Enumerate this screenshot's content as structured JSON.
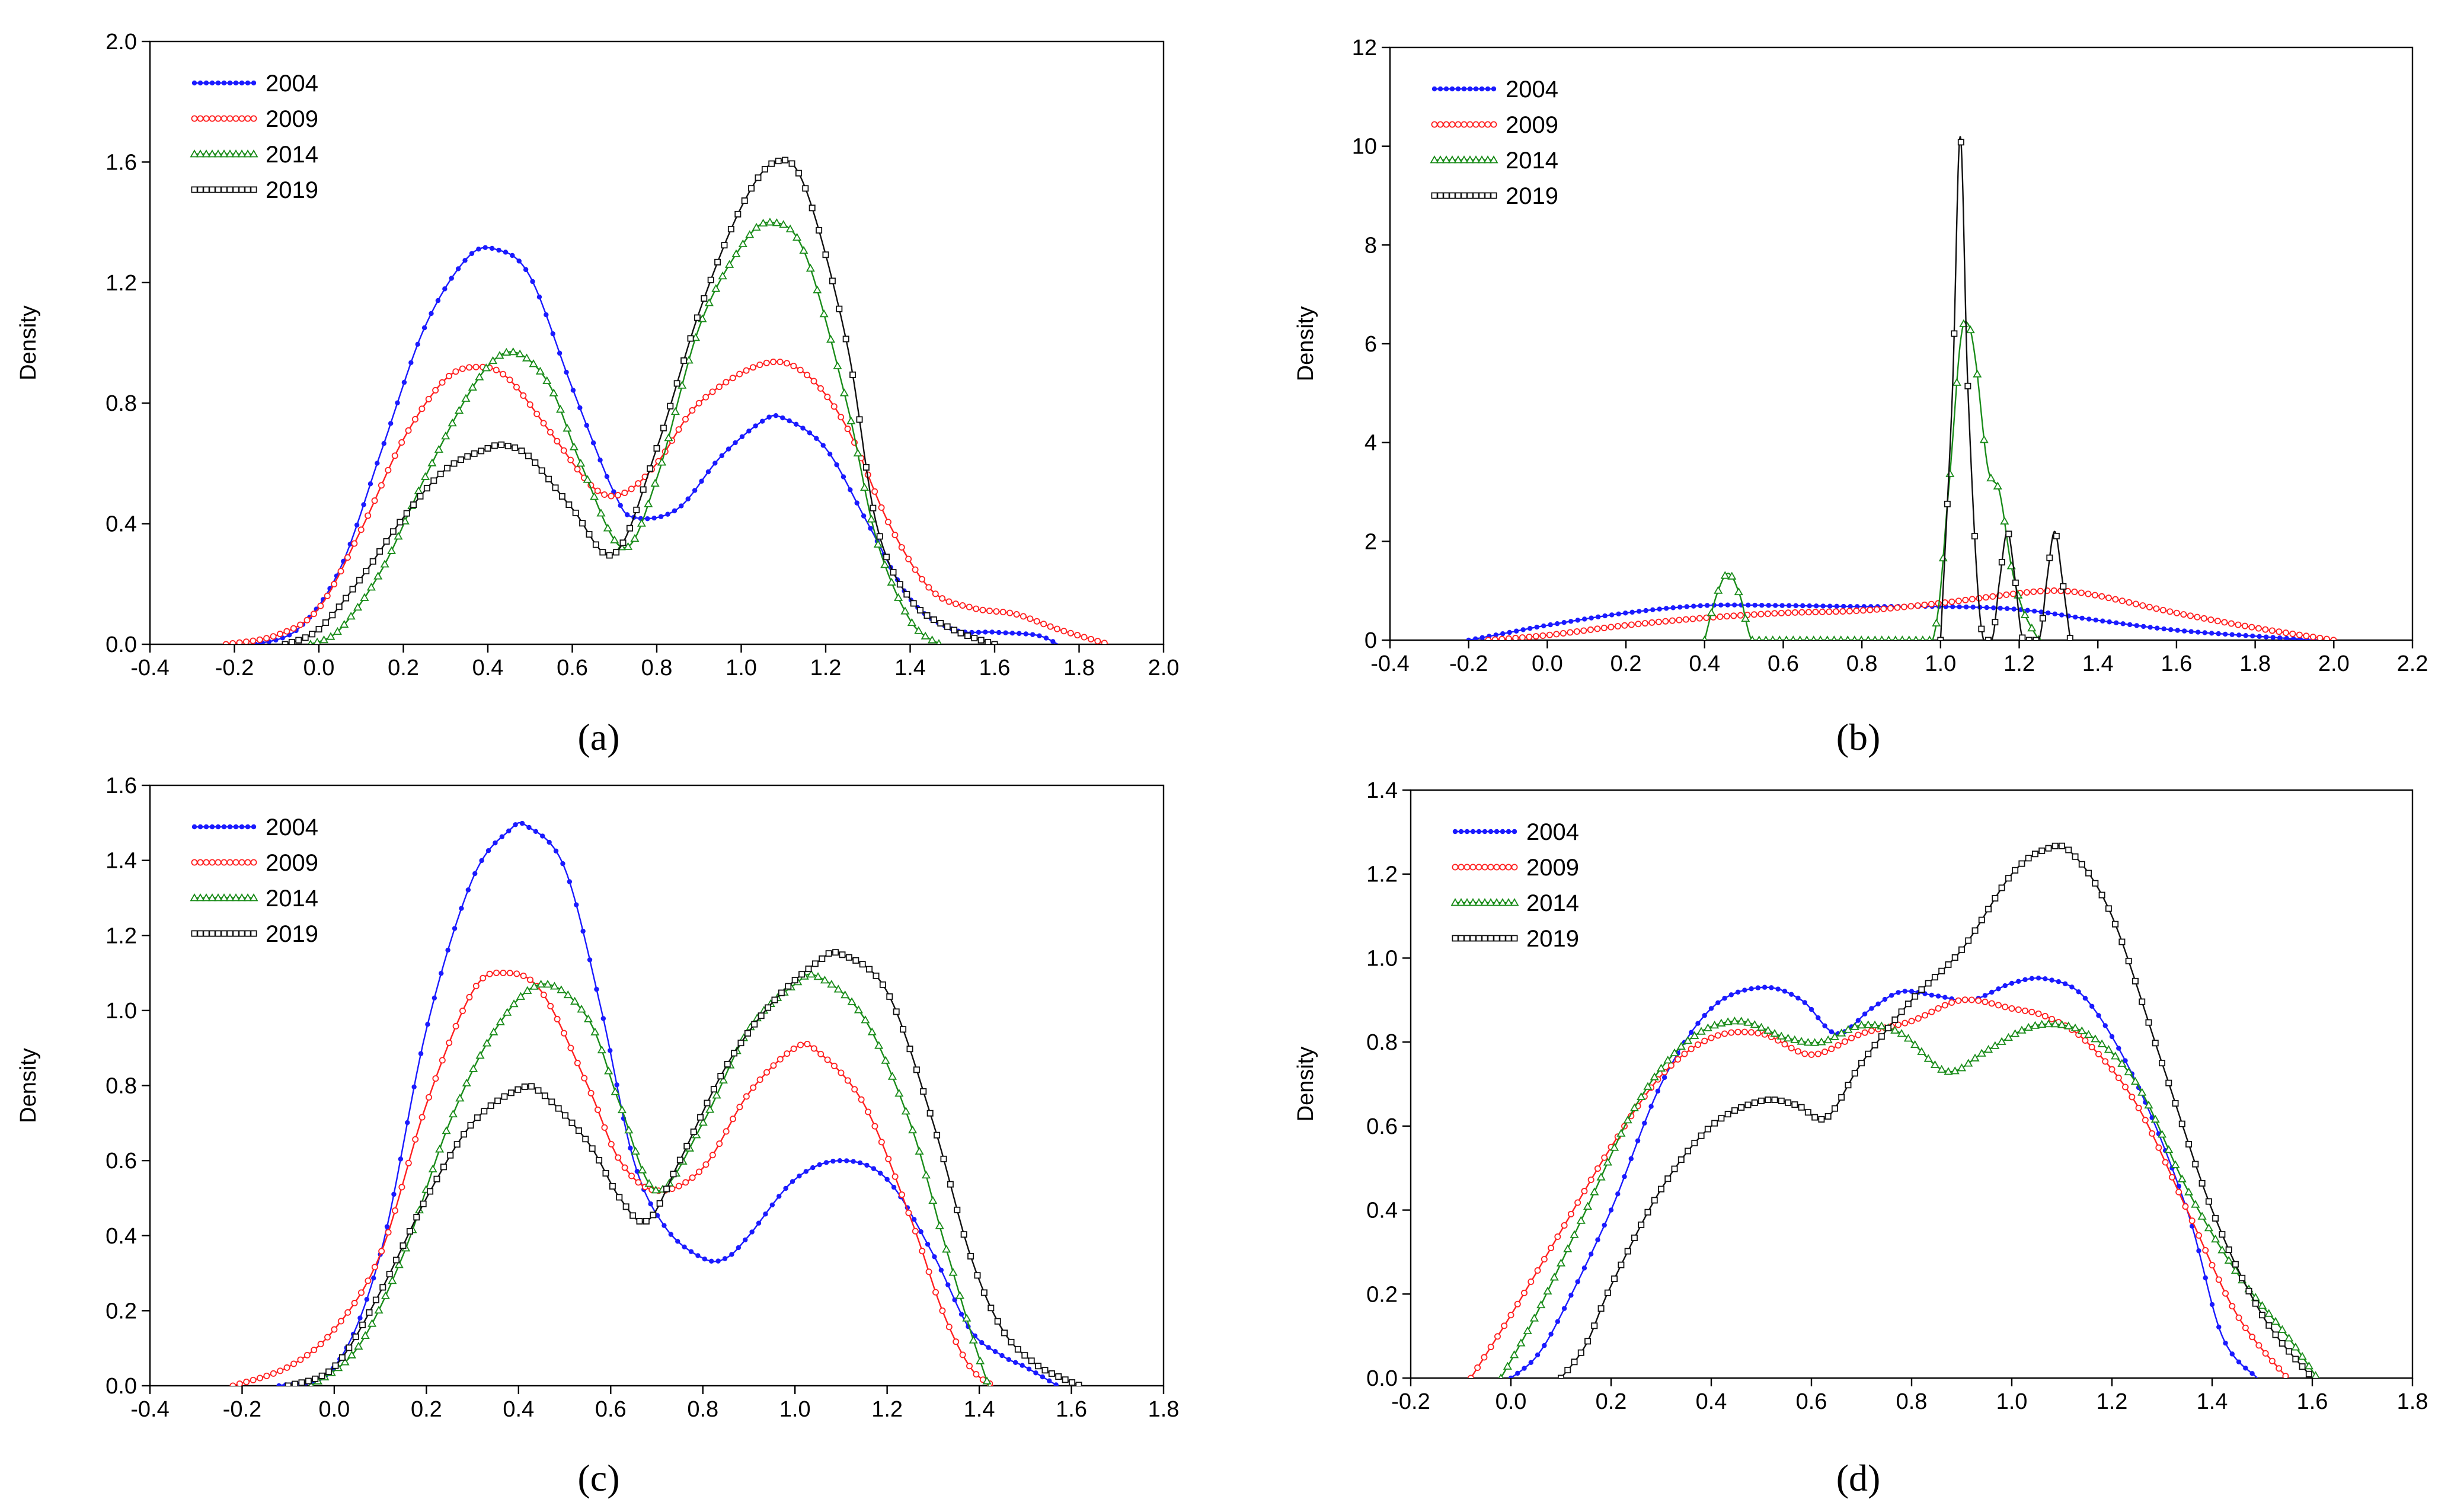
{
  "chart_data": [
    {
      "type": "line",
      "panel_label": "(a)",
      "ylabel": "Density",
      "xlim": [
        -0.4,
        2.0
      ],
      "ylim": [
        0.0,
        2.0
      ],
      "xticks": [
        -0.4,
        -0.2,
        0.0,
        0.2,
        0.4,
        0.6,
        0.8,
        1.0,
        1.2,
        1.4,
        1.6,
        1.8,
        2.0
      ],
      "xtick_labels": [
        "-0.4",
        "-0.2",
        "0.0",
        "0.2",
        "0.4",
        "0.6",
        "0.8",
        "1.0",
        "1.2",
        "1.4",
        "1.6",
        "1.8",
        "2.0"
      ],
      "yticks": [
        0.0,
        0.4,
        0.8,
        1.2,
        1.6,
        2.0
      ],
      "ytick_labels": [
        "0.0",
        "0.4",
        "0.8",
        "1.2",
        "1.6",
        "2.0"
      ],
      "legend": "top-left",
      "series": [
        {
          "name": "2004",
          "marker": "filled-dot",
          "color": "#1a1aff",
          "x": [
            -0.15,
            -0.05,
            0.05,
            0.15,
            0.25,
            0.35,
            0.42,
            0.5,
            0.6,
            0.7,
            0.75,
            0.85,
            0.95,
            1.05,
            1.1,
            1.2,
            1.3,
            1.4,
            1.5,
            1.6,
            1.7,
            1.75
          ],
          "y": [
            0.0,
            0.05,
            0.25,
            0.65,
            1.05,
            1.28,
            1.31,
            1.22,
            0.85,
            0.5,
            0.42,
            0.45,
            0.62,
            0.74,
            0.75,
            0.65,
            0.4,
            0.15,
            0.05,
            0.04,
            0.03,
            0.0
          ]
        },
        {
          "name": "2009",
          "marker": "open-circle",
          "color": "#ff2020",
          "x": [
            -0.22,
            -0.1,
            0.0,
            0.1,
            0.2,
            0.3,
            0.38,
            0.45,
            0.55,
            0.65,
            0.72,
            0.8,
            0.9,
            1.05,
            1.15,
            1.25,
            1.35,
            1.45,
            1.55,
            1.65,
            1.75,
            1.87
          ],
          "y": [
            0.0,
            0.03,
            0.12,
            0.38,
            0.68,
            0.88,
            0.92,
            0.88,
            0.7,
            0.52,
            0.5,
            0.6,
            0.8,
            0.93,
            0.9,
            0.72,
            0.4,
            0.18,
            0.12,
            0.1,
            0.05,
            0.0
          ]
        },
        {
          "name": "2014",
          "marker": "open-triangle",
          "color": "#1a8c1a",
          "x": [
            -0.02,
            0.05,
            0.15,
            0.25,
            0.35,
            0.42,
            0.48,
            0.55,
            0.62,
            0.72,
            0.8,
            0.9,
            1.0,
            1.07,
            1.15,
            1.25,
            1.32,
            1.4,
            1.47
          ],
          "y": [
            0.0,
            0.05,
            0.25,
            0.55,
            0.82,
            0.95,
            0.96,
            0.85,
            0.6,
            0.32,
            0.55,
            1.05,
            1.32,
            1.4,
            1.3,
            0.8,
            0.35,
            0.08,
            0.0
          ]
        },
        {
          "name": "2019",
          "marker": "open-square",
          "color": "#111111",
          "x": [
            -0.08,
            0.0,
            0.1,
            0.2,
            0.3,
            0.4,
            0.44,
            0.5,
            0.6,
            0.7,
            0.8,
            0.9,
            1.0,
            1.08,
            1.15,
            1.25,
            1.32,
            1.4,
            1.5,
            1.6
          ],
          "y": [
            0.0,
            0.05,
            0.22,
            0.42,
            0.58,
            0.65,
            0.66,
            0.62,
            0.45,
            0.3,
            0.65,
            1.1,
            1.45,
            1.6,
            1.52,
            1.0,
            0.4,
            0.15,
            0.05,
            0.0
          ]
        }
      ]
    },
    {
      "type": "line",
      "panel_label": "(b)",
      "ylabel": "Density",
      "xlim": [
        -0.4,
        2.2
      ],
      "ylim": [
        0,
        12
      ],
      "xticks": [
        -0.4,
        -0.2,
        0.0,
        0.2,
        0.4,
        0.6,
        0.8,
        1.0,
        1.2,
        1.4,
        1.6,
        1.8,
        2.0,
        2.2
      ],
      "xtick_labels": [
        "-0.4",
        "-0.2",
        "0.0",
        "0.2",
        "0.4",
        "0.6",
        "0.8",
        "1.0",
        "1.2",
        "1.4",
        "1.6",
        "1.8",
        "2.0",
        "2.2"
      ],
      "yticks": [
        0,
        2,
        4,
        6,
        8,
        10,
        12
      ],
      "ytick_labels": [
        "0",
        "2",
        "4",
        "6",
        "8",
        "10",
        "12"
      ],
      "legend": "top-left",
      "series": [
        {
          "name": "2004",
          "marker": "filled-dot",
          "color": "#1a1aff",
          "x": [
            -0.2,
            -0.1,
            0.0,
            0.2,
            0.4,
            0.6,
            0.8,
            1.0,
            1.2,
            1.4,
            1.6,
            1.8,
            1.95
          ],
          "y": [
            0.0,
            0.15,
            0.3,
            0.55,
            0.7,
            0.7,
            0.68,
            0.68,
            0.62,
            0.4,
            0.2,
            0.08,
            0.0
          ]
        },
        {
          "name": "2009",
          "marker": "open-circle",
          "color": "#ff2020",
          "x": [
            -0.15,
            0.0,
            0.2,
            0.4,
            0.6,
            0.8,
            1.0,
            1.2,
            1.3,
            1.4,
            1.6,
            1.8,
            2.0
          ],
          "y": [
            0.0,
            0.1,
            0.3,
            0.45,
            0.55,
            0.6,
            0.75,
            0.95,
            1.0,
            0.9,
            0.55,
            0.25,
            0.0
          ]
        },
        {
          "name": "2014",
          "marker": "open-triangle",
          "color": "#1a8c1a",
          "x": [
            0.4,
            0.43,
            0.46,
            0.49,
            0.52,
            0.56,
            0.7,
            0.9,
            0.98,
            1.02,
            1.05,
            1.07,
            1.09,
            1.12,
            1.15,
            1.18,
            1.21,
            1.25
          ],
          "y": [
            0.0,
            0.9,
            1.35,
            0.9,
            0.0,
            0.0,
            0.0,
            0.0,
            0.0,
            3.0,
            6.0,
            6.4,
            5.6,
            3.5,
            3.0,
            1.5,
            0.6,
            0.0
          ]
        },
        {
          "name": "2019",
          "marker": "open-square",
          "color": "#111111",
          "x": [
            1.0,
            1.03,
            1.05,
            1.07,
            1.1,
            1.13,
            1.15,
            1.17,
            1.19,
            1.21,
            1.25,
            1.27,
            1.29,
            1.31,
            1.33
          ],
          "y": [
            0.0,
            5.0,
            10.2,
            5.0,
            0.5,
            0.0,
            1.2,
            2.2,
            1.2,
            0.0,
            0.0,
            1.2,
            2.2,
            1.2,
            0.0
          ]
        }
      ]
    },
    {
      "type": "line",
      "panel_label": "(c)",
      "ylabel": "Density",
      "xlim": [
        -0.4,
        1.8
      ],
      "ylim": [
        0.0,
        1.6
      ],
      "xticks": [
        -0.4,
        -0.2,
        0.0,
        0.2,
        0.4,
        0.6,
        0.8,
        1.0,
        1.2,
        1.4,
        1.6,
        1.8
      ],
      "xtick_labels": [
        "-0.4",
        "-0.2",
        "0.0",
        "0.2",
        "0.4",
        "0.6",
        "0.8",
        "1.0",
        "1.2",
        "1.4",
        "1.6",
        "1.8"
      ],
      "yticks": [
        0.0,
        0.2,
        0.4,
        0.6,
        0.8,
        1.0,
        1.2,
        1.4,
        1.6
      ],
      "ytick_labels": [
        "0.0",
        "0.2",
        "0.4",
        "0.6",
        "0.8",
        "1.0",
        "1.2",
        "1.4",
        "1.6"
      ],
      "legend": "top-left",
      "series": [
        {
          "name": "2004",
          "marker": "filled-dot",
          "color": "#1a1aff",
          "x": [
            -0.12,
            0.0,
            0.1,
            0.2,
            0.3,
            0.38,
            0.42,
            0.5,
            0.58,
            0.65,
            0.72,
            0.8,
            0.85,
            0.9,
            1.0,
            1.1,
            1.2,
            1.3,
            1.38,
            1.45,
            1.5,
            1.57
          ],
          "y": [
            0.0,
            0.05,
            0.35,
            0.95,
            1.35,
            1.48,
            1.49,
            1.38,
            1.0,
            0.6,
            0.42,
            0.34,
            0.34,
            0.4,
            0.55,
            0.6,
            0.55,
            0.35,
            0.15,
            0.08,
            0.05,
            0.0
          ]
        },
        {
          "name": "2009",
          "marker": "open-circle",
          "color": "#ff2020",
          "x": [
            -0.22,
            -0.1,
            0.0,
            0.1,
            0.2,
            0.3,
            0.37,
            0.45,
            0.55,
            0.62,
            0.7,
            0.8,
            0.9,
            1.0,
            1.05,
            1.15,
            1.25,
            1.32,
            1.38,
            1.43
          ],
          "y": [
            0.0,
            0.05,
            0.15,
            0.35,
            0.75,
            1.05,
            1.1,
            1.05,
            0.8,
            0.6,
            0.52,
            0.58,
            0.78,
            0.9,
            0.89,
            0.75,
            0.45,
            0.2,
            0.05,
            0.0
          ]
        },
        {
          "name": "2014",
          "marker": "open-triangle",
          "color": "#1a8c1a",
          "x": [
            -0.05,
            0.05,
            0.15,
            0.25,
            0.35,
            0.45,
            0.55,
            0.62,
            0.7,
            0.8,
            0.9,
            1.0,
            1.05,
            1.15,
            1.25,
            1.32,
            1.38,
            1.42
          ],
          "y": [
            0.0,
            0.1,
            0.35,
            0.7,
            0.95,
            1.07,
            0.98,
            0.75,
            0.52,
            0.7,
            0.95,
            1.07,
            1.09,
            0.98,
            0.7,
            0.4,
            0.15,
            0.0
          ]
        },
        {
          "name": "2019",
          "marker": "open-square",
          "color": "#111111",
          "x": [
            -0.1,
            0.0,
            0.1,
            0.2,
            0.3,
            0.4,
            0.45,
            0.55,
            0.62,
            0.68,
            0.75,
            0.85,
            0.95,
            1.05,
            1.1,
            1.2,
            1.3,
            1.38,
            1.45,
            1.52,
            1.58,
            1.62
          ],
          "y": [
            0.0,
            0.05,
            0.25,
            0.5,
            0.7,
            0.79,
            0.78,
            0.65,
            0.5,
            0.44,
            0.6,
            0.85,
            1.02,
            1.13,
            1.15,
            1.05,
            0.7,
            0.35,
            0.15,
            0.06,
            0.02,
            0.0
          ]
        }
      ]
    },
    {
      "type": "line",
      "panel_label": "(d)",
      "ylabel": "Density",
      "xlim": [
        -0.2,
        1.8
      ],
      "ylim": [
        0.0,
        1.4
      ],
      "xticks": [
        -0.2,
        0.0,
        0.2,
        0.4,
        0.6,
        0.8,
        1.0,
        1.2,
        1.4,
        1.6,
        1.8
      ],
      "xtick_labels": [
        "-0.2",
        "0.0",
        "0.2",
        "0.4",
        "0.6",
        "0.8",
        "1.0",
        "1.2",
        "1.4",
        "1.6",
        "1.8"
      ],
      "yticks": [
        0.0,
        0.2,
        0.4,
        0.6,
        0.8,
        1.0,
        1.2,
        1.4
      ],
      "ytick_labels": [
        "0.0",
        "0.2",
        "0.4",
        "0.6",
        "0.8",
        "1.0",
        "1.2",
        "1.4"
      ],
      "legend": "top-left",
      "series": [
        {
          "name": "2004",
          "marker": "filled-dot",
          "color": "#1a1aff",
          "x": [
            0.0,
            0.05,
            0.1,
            0.2,
            0.3,
            0.4,
            0.5,
            0.58,
            0.65,
            0.72,
            0.78,
            0.85,
            0.92,
            1.0,
            1.07,
            1.15,
            1.25,
            1.35,
            1.42,
            1.49
          ],
          "y": [
            0.0,
            0.05,
            0.15,
            0.4,
            0.7,
            0.88,
            0.93,
            0.9,
            0.82,
            0.88,
            0.92,
            0.91,
            0.9,
            0.94,
            0.95,
            0.9,
            0.7,
            0.4,
            0.1,
            0.0
          ]
        },
        {
          "name": "2009",
          "marker": "open-circle",
          "color": "#ff2020",
          "x": [
            -0.08,
            0.0,
            0.1,
            0.2,
            0.3,
            0.4,
            0.5,
            0.6,
            0.7,
            0.8,
            0.9,
            1.0,
            1.07,
            1.15,
            1.25,
            1.35,
            1.45,
            1.55
          ],
          "y": [
            0.0,
            0.15,
            0.35,
            0.55,
            0.72,
            0.81,
            0.82,
            0.77,
            0.82,
            0.85,
            0.9,
            0.88,
            0.86,
            0.8,
            0.65,
            0.4,
            0.15,
            0.0
          ]
        },
        {
          "name": "2014",
          "marker": "open-triangle",
          "color": "#1a8c1a",
          "x": [
            -0.02,
            0.05,
            0.15,
            0.25,
            0.35,
            0.45,
            0.55,
            0.62,
            0.7,
            0.78,
            0.87,
            0.95,
            1.05,
            1.15,
            1.25,
            1.35,
            1.45,
            1.55,
            1.61
          ],
          "y": [
            0.0,
            0.15,
            0.4,
            0.65,
            0.8,
            0.85,
            0.81,
            0.8,
            0.84,
            0.82,
            0.73,
            0.78,
            0.84,
            0.82,
            0.7,
            0.45,
            0.25,
            0.1,
            0.0
          ]
        },
        {
          "name": "2019",
          "marker": "open-square",
          "color": "#111111",
          "x": [
            0.1,
            0.15,
            0.2,
            0.3,
            0.4,
            0.5,
            0.57,
            0.63,
            0.7,
            0.8,
            0.9,
            1.0,
            1.07,
            1.12,
            1.2,
            1.3,
            1.4,
            1.5,
            1.6
          ],
          "y": [
            0.0,
            0.08,
            0.22,
            0.45,
            0.6,
            0.66,
            0.65,
            0.62,
            0.75,
            0.9,
            1.02,
            1.2,
            1.26,
            1.25,
            1.1,
            0.75,
            0.4,
            0.15,
            0.0
          ]
        }
      ]
    }
  ]
}
